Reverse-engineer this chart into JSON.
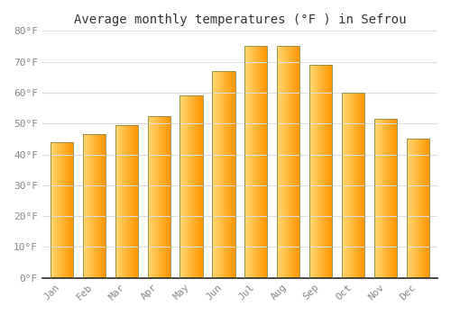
{
  "title": "Average monthly temperatures (°F ) in Sefrou",
  "months": [
    "Jan",
    "Feb",
    "Mar",
    "Apr",
    "May",
    "Jun",
    "Jul",
    "Aug",
    "Sep",
    "Oct",
    "Nov",
    "Dec"
  ],
  "values": [
    44,
    46.5,
    49.5,
    52.5,
    59,
    67,
    75,
    75,
    69,
    60,
    51.5,
    45
  ],
  "ylim": [
    0,
    80
  ],
  "yticks": [
    0,
    10,
    20,
    30,
    40,
    50,
    60,
    70,
    80
  ],
  "ytick_labels": [
    "0°F",
    "10°F",
    "20°F",
    "30°F",
    "40°F",
    "50°F",
    "60°F",
    "70°F",
    "80°F"
  ],
  "background_color": "#FFFFFF",
  "grid_color": "#DDDDDD",
  "bar_color_left": "#FFD070",
  "bar_color_right": "#FFA000",
  "bar_edge_color": "#888844",
  "title_fontsize": 10,
  "tick_fontsize": 8,
  "font_family": "monospace",
  "tick_color": "#888888",
  "spine_color": "#222222"
}
